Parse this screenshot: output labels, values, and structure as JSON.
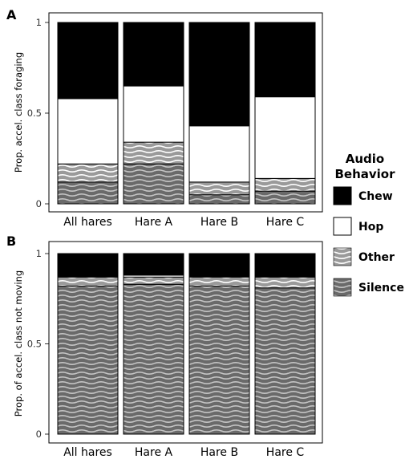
{
  "colors": {
    "chew": "#000000",
    "hop": "#ffffff",
    "other_base": "#9a9a9a",
    "other_wave": "#ffffff",
    "silence_base": "#6a6a6a",
    "silence_wave": "#c4c4c4"
  },
  "legend": {
    "title_line1": "Audio",
    "title_line2": "Behavior",
    "items": [
      {
        "key": "chew",
        "label": "Chew"
      },
      {
        "key": "hop",
        "label": "Hop"
      },
      {
        "key": "other",
        "label": "Other"
      },
      {
        "key": "silence",
        "label": "Silence"
      }
    ]
  },
  "chart_data": [
    {
      "type": "bar",
      "stacked": true,
      "panel_label": "A",
      "ylabel": "Prop. accel. class foraging",
      "ylim": [
        0,
        1
      ],
      "yticks": [
        "0",
        "0.5",
        "1"
      ],
      "categories": [
        "All hares",
        "Hare A",
        "Hare B",
        "Hare C"
      ],
      "stack_order_bottom_to_top": [
        "Silence",
        "Other",
        "Hop",
        "Chew"
      ],
      "series": [
        {
          "name": "Silence",
          "values": [
            0.12,
            0.22,
            0.05,
            0.07
          ]
        },
        {
          "name": "Other",
          "values": [
            0.1,
            0.12,
            0.07,
            0.07
          ]
        },
        {
          "name": "Hop",
          "values": [
            0.36,
            0.31,
            0.31,
            0.45
          ]
        },
        {
          "name": "Chew",
          "values": [
            0.42,
            0.35,
            0.57,
            0.41
          ]
        }
      ]
    },
    {
      "type": "bar",
      "stacked": true,
      "panel_label": "B",
      "ylabel": "Prop. of accel. class not moving",
      "ylim": [
        0,
        1
      ],
      "yticks": [
        "0",
        "0.5",
        "1"
      ],
      "categories": [
        "All hares",
        "Hare A",
        "Hare B",
        "Hare C"
      ],
      "stack_order_bottom_to_top": [
        "Silence",
        "Other",
        "Hop",
        "Chew"
      ],
      "series": [
        {
          "name": "Silence",
          "values": [
            0.82,
            0.83,
            0.82,
            0.81
          ]
        },
        {
          "name": "Other",
          "values": [
            0.05,
            0.04,
            0.05,
            0.06
          ]
        },
        {
          "name": "Hop",
          "values": [
            0.0,
            0.01,
            0.0,
            0.0
          ]
        },
        {
          "name": "Chew",
          "values": [
            0.13,
            0.12,
            0.13,
            0.13
          ]
        }
      ]
    }
  ]
}
